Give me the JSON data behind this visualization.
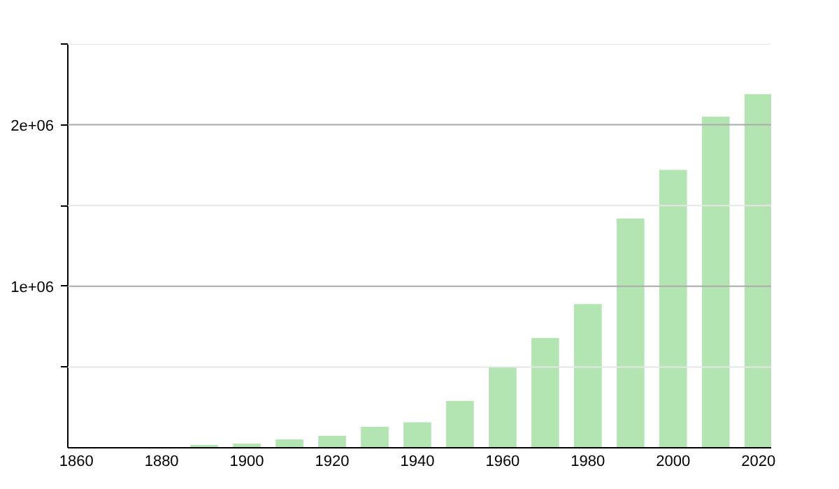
{
  "chart_data": {
    "type": "bar",
    "x": [
      1890,
      1900,
      1910,
      1920,
      1930,
      1940,
      1950,
      1960,
      1970,
      1980,
      1990,
      2000,
      2010,
      2020
    ],
    "values": [
      17000,
      26000,
      52000,
      75000,
      130000,
      158000,
      290000,
      500000,
      680000,
      890000,
      1420000,
      1720000,
      2050000,
      2190000
    ],
    "color": "#b3e5b3",
    "xlim": [
      1858,
      2023
    ],
    "xticks": [
      1860,
      1880,
      1900,
      1920,
      1940,
      1960,
      1980,
      2000,
      2020
    ],
    "ylim": [
      0,
      2500000
    ],
    "yticks": [
      {
        "value": 500000,
        "label": null
      },
      {
        "value": 1000000,
        "label": "1e+06"
      },
      {
        "value": 1500000,
        "label": null
      },
      {
        "value": 2000000,
        "label": "2e+06"
      },
      {
        "value": 2500000,
        "label": null
      }
    ],
    "grid": "y"
  }
}
